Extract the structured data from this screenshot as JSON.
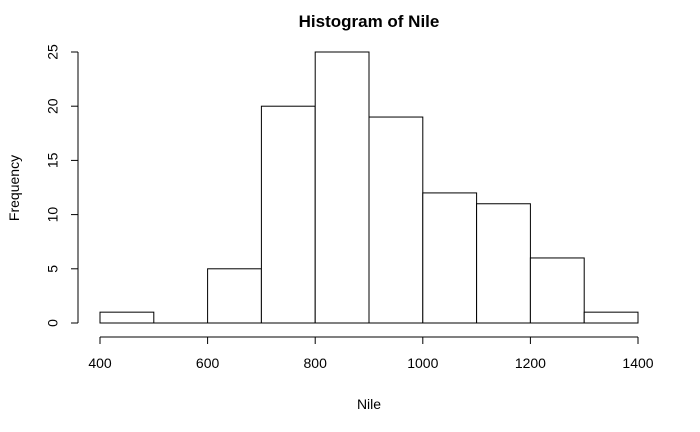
{
  "chart_data": {
    "type": "bar",
    "title": "Histogram of Nile",
    "xlabel": "Nile",
    "ylabel": "Frequency",
    "bins": [
      {
        "start": 400,
        "end": 500,
        "count": 1
      },
      {
        "start": 500,
        "end": 600,
        "count": 0
      },
      {
        "start": 600,
        "end": 700,
        "count": 5
      },
      {
        "start": 700,
        "end": 800,
        "count": 20
      },
      {
        "start": 800,
        "end": 900,
        "count": 25
      },
      {
        "start": 900,
        "end": 1000,
        "count": 19
      },
      {
        "start": 1000,
        "end": 1100,
        "count": 12
      },
      {
        "start": 1100,
        "end": 1200,
        "count": 11
      },
      {
        "start": 1200,
        "end": 1300,
        "count": 6
      },
      {
        "start": 1300,
        "end": 1400,
        "count": 1
      }
    ],
    "xlim": [
      400,
      1400
    ],
    "ylim": [
      0,
      25
    ],
    "x_ticks": [
      "400",
      "600",
      "800",
      "1000",
      "1200",
      "1400"
    ],
    "y_ticks": [
      "0",
      "5",
      "10",
      "15",
      "20",
      "25"
    ],
    "grid": false,
    "legend": false
  }
}
